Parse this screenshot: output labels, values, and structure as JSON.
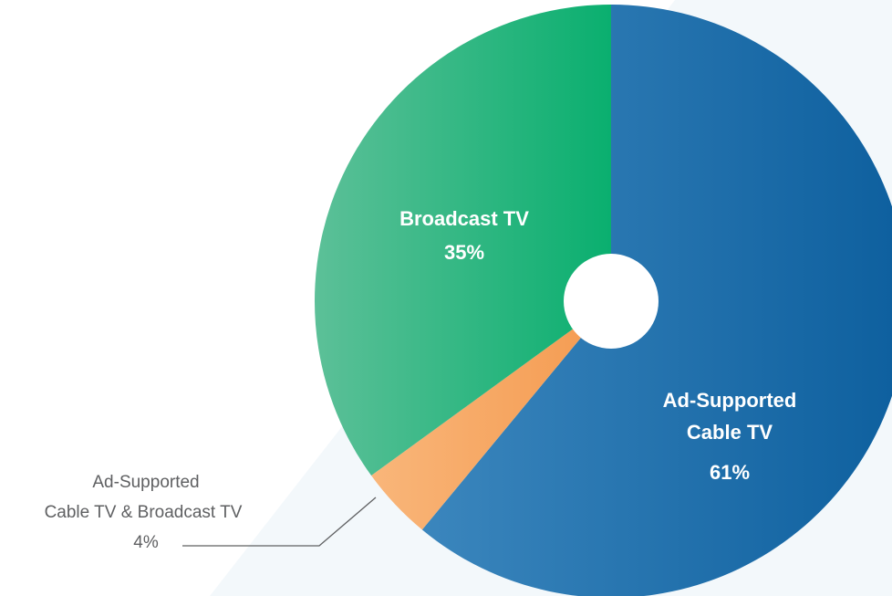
{
  "chart_data": {
    "type": "pie",
    "title": "",
    "slices": [
      {
        "label_lines": [
          "Ad-Supported",
          "Cable TV"
        ],
        "value_label": "61%",
        "value": 61,
        "color_start": "#3b86bd",
        "color_end": "#0d5f9e"
      },
      {
        "label_lines": [
          "Ad-Supported",
          "Cable TV & Broadcast TV"
        ],
        "value_label": "4%",
        "value": 4,
        "color_start": "#f9b67a",
        "color_end": "#f49a4f"
      },
      {
        "label_lines": [
          "Broadcast TV"
        ],
        "value_label": "35%",
        "value": 35,
        "color_start": "#5cc098",
        "color_end": "#0aaf6f"
      }
    ],
    "donut_hole": true
  },
  "colors": {
    "background_band": "#f3f8fb",
    "outer_label_text": "#5f6062",
    "leader_line": "#5f6062"
  }
}
